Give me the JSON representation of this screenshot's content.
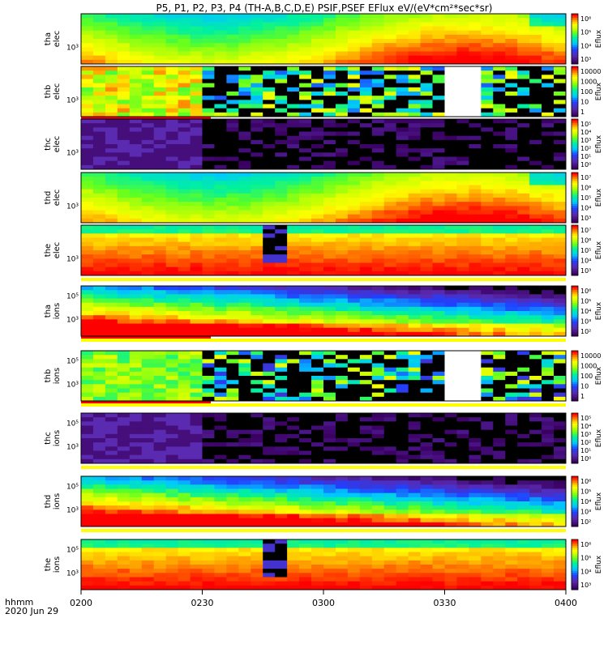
{
  "title": "P5, P1, P2, P3, P4 (TH-A,B,C,D,E) PSIF,PSEF EFlux eV/(eV*cm²*sec*sr)",
  "time_axis": {
    "label_line1": "hhmm",
    "label_line2": "2020 Jun 29",
    "ticks": [
      "0200",
      "0230",
      "0300",
      "0330",
      "0400"
    ]
  },
  "chart_data": {
    "type": "heatmap",
    "title": "P5, P1, P2, P3, P4 (TH-A,B,C,D,E) PSIF,PSEF EFlux eV/(eV*cm²*sec*sr)",
    "x_range": [
      "0200",
      "0400"
    ],
    "x_ticks": [
      "0200",
      "0230",
      "0300",
      "0330",
      "0400"
    ],
    "x_units": "hhmm, 2020 Jun 29",
    "colorbar_label": "Eflux",
    "panels": [
      {
        "id": "tha-elec",
        "ylabel": [
          "tha",
          "elec"
        ],
        "ytick": "10³",
        "cbar_ticks": [
          "10⁶",
          "10⁵",
          "10⁴",
          "10³"
        ],
        "pattern": "elec-smooth",
        "flags": []
      },
      {
        "id": "thb-elec",
        "ylabel": [
          "thb",
          "elec"
        ],
        "ytick": "10³",
        "cbar_ticks": [
          "10000",
          "1000",
          "100",
          "10",
          "1"
        ],
        "pattern": "sparse",
        "flags": [
          "red"
        ]
      },
      {
        "id": "thc-elec",
        "ylabel": [
          "thc",
          "elec"
        ],
        "ytick": "10³",
        "cbar_ticks": [
          "10⁵",
          "10⁴",
          "10³",
          "10²",
          "10¹",
          "10⁰"
        ],
        "pattern": "dark",
        "flags": []
      },
      {
        "id": "thd-elec",
        "ylabel": [
          "thd",
          "elec"
        ],
        "ytick": "10³",
        "cbar_ticks": [
          "10⁷",
          "10⁶",
          "10⁵",
          "10⁴",
          "10³"
        ],
        "pattern": "elec-smooth",
        "flags": []
      },
      {
        "id": "the-elec",
        "ylabel": [
          "the",
          "elec"
        ],
        "ytick": "10³",
        "cbar_ticks": [
          "10⁷",
          "10⁶",
          "10⁵",
          "10⁴",
          "10³"
        ],
        "pattern": "hot",
        "flags": [
          "yellow"
        ]
      },
      {
        "id": "tha-ions",
        "ylabel": [
          "tha",
          "ions"
        ],
        "ytick": "10³",
        "ytick2": "10⁵",
        "cbar_ticks": [
          "10⁶",
          "10⁵",
          "10⁴",
          "10³",
          "10²"
        ],
        "pattern": "ions",
        "flags": [
          "red",
          "yellow"
        ]
      },
      {
        "id": "thb-ions",
        "ylabel": [
          "thb",
          "ions"
        ],
        "ytick": "10³",
        "ytick2": "10⁵",
        "cbar_ticks": [
          "10000",
          "1000",
          "100",
          "10",
          "1"
        ],
        "pattern": "sparse-ions",
        "flags": [
          "red",
          "yellow"
        ]
      },
      {
        "id": "thc-ions",
        "ylabel": [
          "thc",
          "ions"
        ],
        "ytick": "10³",
        "ytick2": "10⁵",
        "cbar_ticks": [
          "10⁵",
          "10⁴",
          "10³",
          "10²",
          "10¹",
          "10⁰"
        ],
        "pattern": "dark",
        "flags": [
          "yellow"
        ]
      },
      {
        "id": "thd-ions",
        "ylabel": [
          "thd",
          "ions"
        ],
        "ytick": "10³",
        "ytick2": "10⁵",
        "cbar_ticks": [
          "10⁶",
          "10⁵",
          "10⁴",
          "10³",
          "10²"
        ],
        "pattern": "ions",
        "flags": [
          "yellow"
        ]
      },
      {
        "id": "the-ions",
        "ylabel": [
          "the",
          "ions"
        ],
        "ytick": "10³",
        "ytick2": "10⁵",
        "cbar_ticks": [
          "10⁶",
          "10⁵",
          "10⁴",
          "10³"
        ],
        "pattern": "hot",
        "flags": []
      }
    ]
  }
}
